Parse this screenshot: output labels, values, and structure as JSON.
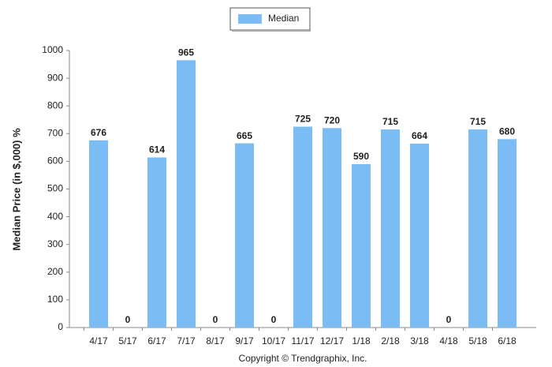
{
  "chart_data": {
    "type": "bar",
    "y_label": "Median Price (in $,000) %",
    "footer": "Copyright © Trendgraphix, Inc.",
    "categories": [
      "4/17",
      "5/17",
      "6/17",
      "7/17",
      "8/17",
      "9/17",
      "10/17",
      "11/17",
      "12/17",
      "1/18",
      "2/18",
      "3/18",
      "4/18",
      "5/18",
      "6/18"
    ],
    "series": [
      {
        "name": "Median",
        "color": "#7bbcf5",
        "values": [
          676,
          0,
          614,
          965,
          0,
          665,
          0,
          725,
          720,
          590,
          715,
          664,
          0,
          715,
          680
        ]
      }
    ],
    "ylim": [
      0,
      1000
    ],
    "yticks": [
      0,
      100,
      200,
      300,
      400,
      500,
      600,
      700,
      800,
      900,
      1000
    ],
    "grid": false,
    "legend": "top"
  }
}
